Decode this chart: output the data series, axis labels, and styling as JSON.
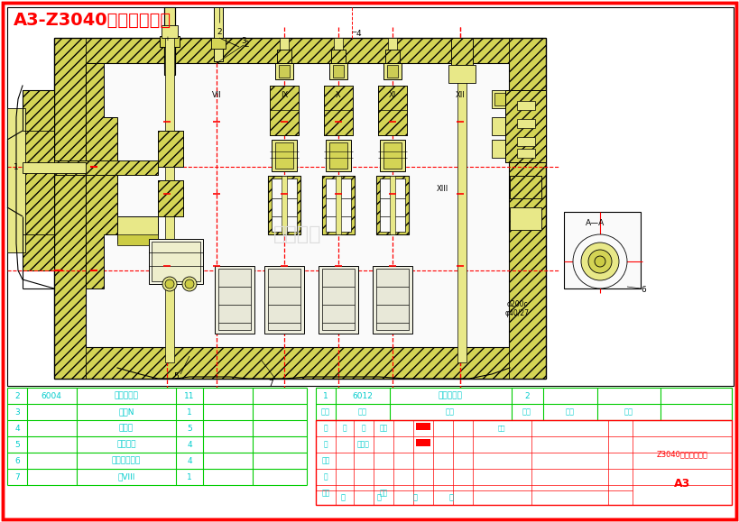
{
  "title": "A3-Z3040进给传动机构",
  "title_color": "#FF0000",
  "title_fontsize": 14,
  "bg_color": "#FFFFFF",
  "border_color": "#FF0000",
  "dk": "#000000",
  "rd": "#FF0000",
  "yc": "#E8E888",
  "yc2": "#D4D455",
  "green_color": "#00CC00",
  "cyan_color": "#00CCCC",
  "bom_rows": [
    [
      "7",
      "",
      "轴VIII",
      "1",
      "",
      ""
    ],
    [
      "6",
      "",
      "双联滑移齿轮",
      "4",
      "",
      ""
    ],
    [
      "5",
      "",
      "双联齿轮",
      "4",
      "",
      ""
    ],
    [
      "4",
      "",
      "锁紧垫",
      "5",
      "",
      ""
    ],
    [
      "3",
      "",
      "垫圈N",
      "1",
      "",
      ""
    ],
    [
      "2",
      "6004",
      "深沟球轴承",
      "11",
      "",
      ""
    ]
  ],
  "title_block_text": "Z3040进给传动机构",
  "title_block_A3": "A3",
  "parts_header_row1": [
    "1",
    "6012",
    "深沟球轴承",
    "2"
  ],
  "parts_header_row2": [
    "序号",
    "代号",
    "名称",
    "数量",
    "材料",
    "备注"
  ]
}
